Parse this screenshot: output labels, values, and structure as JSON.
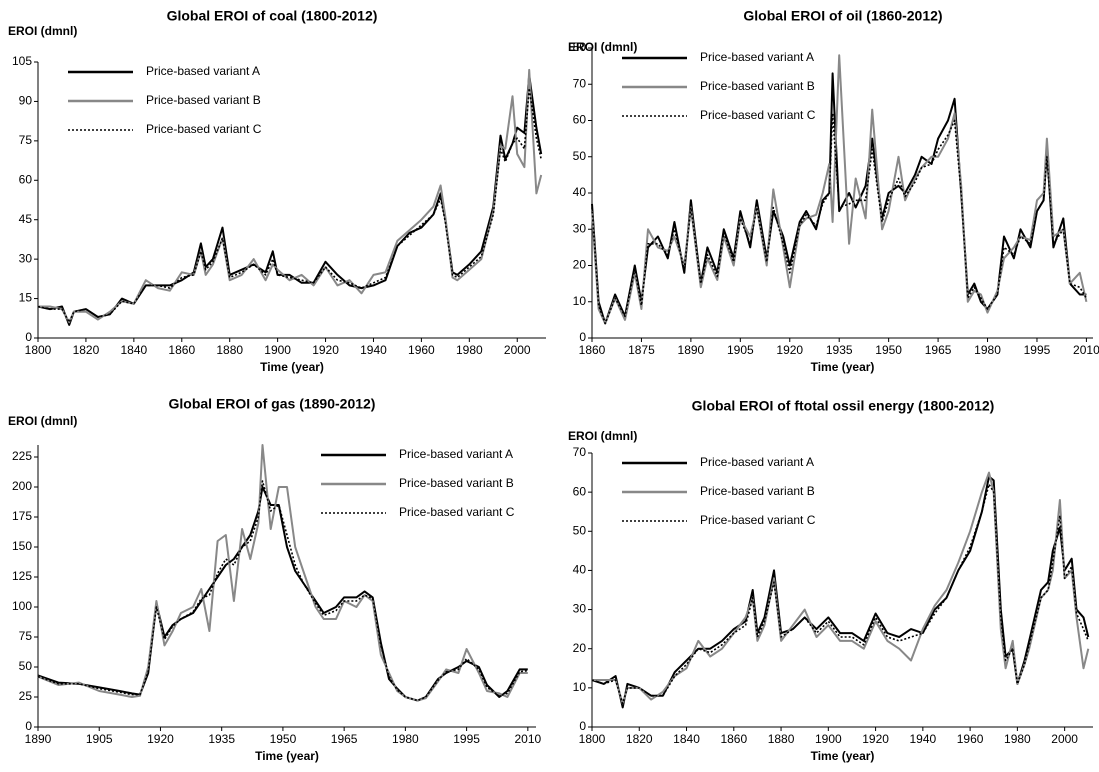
{
  "chart_data": [
    {
      "type": "line",
      "title": "Global EROI of coal (1800-2012)",
      "y_label": "EROI (dmnl)",
      "x_label": "Time (year)",
      "legend": "upper left",
      "x": [
        1800,
        1805,
        1810,
        1813,
        1815,
        1820,
        1825,
        1830,
        1835,
        1840,
        1845,
        1850,
        1855,
        1860,
        1865,
        1868,
        1870,
        1873,
        1877,
        1880,
        1885,
        1890,
        1895,
        1898,
        1900,
        1905,
        1910,
        1915,
        1920,
        1925,
        1930,
        1935,
        1940,
        1945,
        1950,
        1955,
        1960,
        1965,
        1968,
        1970,
        1973,
        1975,
        1980,
        1985,
        1990,
        1993,
        1995,
        1998,
        2000,
        2003,
        2005,
        2008,
        2010
      ],
      "xlim": [
        1800,
        2012
      ],
      "xticks": [
        1800,
        1820,
        1840,
        1860,
        1880,
        1900,
        1920,
        1940,
        1960,
        1980,
        2000
      ],
      "ylim": [
        0,
        105
      ],
      "yticks": [
        0,
        15,
        30,
        45,
        60,
        75,
        90,
        105
      ],
      "series": [
        {
          "name": "Price-based variant A",
          "color": "#000000",
          "values": [
            12,
            11,
            12,
            5,
            10,
            11,
            8,
            9,
            15,
            13,
            20,
            20,
            20,
            22,
            25,
            36,
            27,
            30,
            42,
            24,
            26,
            28,
            25,
            33,
            24,
            24,
            21,
            21,
            29,
            24,
            20,
            19,
            20,
            22,
            35,
            40,
            42,
            47,
            55,
            45,
            25,
            24,
            28,
            33,
            50,
            77,
            68,
            74,
            80,
            78,
            100,
            80,
            70
          ]
        },
        {
          "name": "Price-based variant B",
          "color": "#888888",
          "values": [
            12,
            12,
            11,
            6,
            10,
            10,
            7,
            10,
            14,
            13,
            22,
            19,
            18,
            25,
            24,
            33,
            24,
            28,
            38,
            22,
            24,
            30,
            22,
            28,
            26,
            22,
            24,
            20,
            27,
            20,
            22,
            17,
            24,
            25,
            37,
            41,
            45,
            50,
            58,
            46,
            23,
            22,
            26,
            30,
            48,
            73,
            72,
            92,
            70,
            65,
            102,
            55,
            62
          ]
        },
        {
          "name": "Price-based variant C",
          "color": "#000000",
          "dotted": true,
          "values": [
            12,
            11,
            11,
            6,
            10,
            11,
            8,
            9,
            14,
            13,
            20,
            20,
            19,
            23,
            24,
            33,
            26,
            29,
            38,
            23,
            25,
            28,
            24,
            30,
            24,
            23,
            22,
            21,
            27,
            22,
            21,
            19,
            21,
            23,
            35,
            39,
            43,
            47,
            53,
            44,
            24,
            23,
            27,
            31,
            47,
            72,
            67,
            74,
            76,
            72,
            95,
            76,
            68
          ]
        }
      ]
    },
    {
      "type": "line",
      "title": "Global EROI of oil (1860-2012)",
      "y_label": "EROI (dmnl)",
      "x_label": "Time (year)",
      "legend": "upper left",
      "x": [
        1860,
        1862,
        1864,
        1867,
        1870,
        1873,
        1875,
        1877,
        1880,
        1883,
        1885,
        1888,
        1890,
        1893,
        1895,
        1898,
        1900,
        1903,
        1905,
        1908,
        1910,
        1913,
        1915,
        1918,
        1920,
        1923,
        1925,
        1928,
        1930,
        1932,
        1933,
        1935,
        1938,
        1940,
        1943,
        1945,
        1948,
        1950,
        1953,
        1955,
        1958,
        1960,
        1963,
        1965,
        1968,
        1970,
        1972,
        1974,
        1976,
        1978,
        1980,
        1983,
        1985,
        1988,
        1990,
        1993,
        1995,
        1997,
        1998,
        2000,
        2003,
        2005,
        2008,
        2010
      ],
      "xlim": [
        1860,
        2012
      ],
      "xticks": [
        1860,
        1875,
        1890,
        1905,
        1920,
        1935,
        1950,
        1965,
        1980,
        1995,
        2010
      ],
      "ylim": [
        0,
        80
      ],
      "yticks": [
        0,
        10,
        20,
        30,
        40,
        50,
        60,
        70,
        80
      ],
      "series": [
        {
          "name": "Price-based variant A",
          "color": "#000000",
          "values": [
            37,
            10,
            4,
            12,
            6,
            20,
            10,
            25,
            28,
            22,
            32,
            18,
            38,
            15,
            25,
            18,
            30,
            22,
            35,
            25,
            38,
            22,
            35,
            28,
            20,
            32,
            35,
            30,
            38,
            40,
            73,
            35,
            40,
            36,
            42,
            55,
            33,
            40,
            42,
            40,
            45,
            50,
            48,
            55,
            60,
            66,
            40,
            12,
            15,
            10,
            8,
            12,
            28,
            22,
            30,
            25,
            35,
            38,
            52,
            25,
            33,
            15,
            12,
            12
          ]
        },
        {
          "name": "Price-based variant B",
          "color": "#888888",
          "values": [
            35,
            8,
            4,
            11,
            5,
            18,
            8,
            30,
            25,
            24,
            28,
            20,
            36,
            14,
            22,
            16,
            28,
            20,
            33,
            28,
            36,
            20,
            41,
            25,
            14,
            31,
            33,
            34,
            40,
            48,
            32,
            78,
            26,
            44,
            33,
            63,
            30,
            35,
            50,
            38,
            44,
            47,
            50,
            50,
            55,
            62,
            42,
            10,
            13,
            12,
            7,
            13,
            22,
            25,
            28,
            27,
            38,
            40,
            55,
            28,
            30,
            15,
            18,
            10
          ]
        },
        {
          "name": "Price-based variant C",
          "color": "#000000",
          "dotted": true,
          "values": [
            36,
            9,
            4,
            11,
            6,
            19,
            9,
            26,
            26,
            23,
            30,
            19,
            36,
            15,
            23,
            17,
            29,
            21,
            33,
            26,
            36,
            21,
            36,
            26,
            18,
            31,
            34,
            31,
            37,
            40,
            62,
            36,
            37,
            38,
            38,
            52,
            32,
            38,
            44,
            39,
            43,
            47,
            48,
            52,
            56,
            60,
            40,
            11,
            14,
            11,
            8,
            12,
            25,
            23,
            28,
            26,
            35,
            38,
            50,
            26,
            30,
            15,
            14,
            11
          ]
        }
      ]
    },
    {
      "type": "line",
      "title": "Global EROI of gas (1890-2012)",
      "y_label": "EROI (dmnl)",
      "x_label": "Time (year)",
      "legend": "upper right",
      "x": [
        1890,
        1895,
        1900,
        1905,
        1910,
        1913,
        1915,
        1917,
        1919,
        1921,
        1923,
        1925,
        1928,
        1930,
        1932,
        1934,
        1936,
        1938,
        1940,
        1942,
        1944,
        1945,
        1947,
        1949,
        1951,
        1953,
        1955,
        1958,
        1960,
        1963,
        1965,
        1968,
        1970,
        1972,
        1974,
        1976,
        1978,
        1980,
        1983,
        1985,
        1988,
        1990,
        1993,
        1995,
        1998,
        2000,
        2003,
        2005,
        2008,
        2010
      ],
      "xlim": [
        1890,
        2012
      ],
      "xticks": [
        1890,
        1905,
        1920,
        1935,
        1950,
        1965,
        1980,
        1995,
        2010
      ],
      "ylim": [
        0,
        235
      ],
      "yticks": [
        0,
        25,
        50,
        75,
        100,
        125,
        150,
        175,
        200,
        225
      ],
      "series": [
        {
          "name": "Price-based variant A",
          "color": "#000000",
          "values": [
            43,
            37,
            36,
            33,
            30,
            28,
            27,
            45,
            103,
            75,
            85,
            90,
            95,
            105,
            115,
            125,
            135,
            140,
            150,
            160,
            180,
            200,
            185,
            185,
            150,
            130,
            120,
            105,
            95,
            100,
            108,
            108,
            113,
            108,
            70,
            40,
            32,
            25,
            22,
            25,
            40,
            45,
            50,
            55,
            50,
            35,
            25,
            30,
            48,
            48
          ]
        },
        {
          "name": "Price-based variant B",
          "color": "#888888",
          "values": [
            42,
            35,
            37,
            30,
            27,
            25,
            26,
            50,
            105,
            68,
            80,
            95,
            100,
            115,
            80,
            155,
            160,
            105,
            165,
            140,
            170,
            235,
            165,
            200,
            200,
            150,
            130,
            100,
            90,
            90,
            105,
            100,
            110,
            105,
            60,
            45,
            30,
            25,
            22,
            24,
            38,
            48,
            45,
            65,
            45,
            30,
            28,
            25,
            45,
            45
          ]
        },
        {
          "name": "Price-based variant C",
          "color": "#000000",
          "dotted": true,
          "values": [
            42,
            36,
            36,
            32,
            29,
            27,
            27,
            46,
            100,
            73,
            84,
            90,
            96,
            107,
            110,
            128,
            140,
            135,
            150,
            155,
            175,
            205,
            180,
            185,
            160,
            135,
            120,
            103,
            93,
            97,
            105,
            105,
            110,
            107,
            68,
            42,
            31,
            25,
            22,
            25,
            39,
            46,
            48,
            57,
            48,
            33,
            26,
            28,
            46,
            47
          ]
        }
      ]
    },
    {
      "type": "line",
      "title": "Global EROI of ftotal ossil energy (1800-2012)",
      "y_label": "EROI (dmnl)",
      "x_label": "Time (year)",
      "legend": "upper left",
      "x": [
        1800,
        1805,
        1810,
        1813,
        1815,
        1820,
        1825,
        1830,
        1835,
        1840,
        1845,
        1850,
        1855,
        1860,
        1865,
        1868,
        1870,
        1873,
        1877,
        1880,
        1885,
        1890,
        1895,
        1900,
        1905,
        1910,
        1915,
        1920,
        1925,
        1930,
        1935,
        1940,
        1945,
        1950,
        1955,
        1960,
        1965,
        1968,
        1970,
        1973,
        1975,
        1978,
        1980,
        1983,
        1985,
        1990,
        1993,
        1995,
        1998,
        2000,
        2003,
        2005,
        2008,
        2010
      ],
      "xlim": [
        1800,
        2012
      ],
      "xticks": [
        1800,
        1820,
        1840,
        1860,
        1880,
        1900,
        1920,
        1940,
        1960,
        1980,
        2000
      ],
      "ylim": [
        0,
        70
      ],
      "yticks": [
        0,
        10,
        20,
        30,
        40,
        50,
        60,
        70
      ],
      "series": [
        {
          "name": "Price-based variant A",
          "color": "#000000",
          "values": [
            12,
            11,
            13,
            5,
            11,
            10,
            8,
            8,
            14,
            17,
            20,
            20,
            22,
            25,
            27,
            35,
            24,
            28,
            40,
            24,
            25,
            28,
            25,
            28,
            24,
            24,
            22,
            29,
            24,
            23,
            25,
            24,
            30,
            33,
            40,
            45,
            55,
            64,
            63,
            30,
            18,
            20,
            11,
            17,
            22,
            35,
            37,
            45,
            51,
            40,
            43,
            30,
            28,
            23
          ]
        },
        {
          "name": "Price-based variant B",
          "color": "#888888",
          "values": [
            12,
            12,
            12,
            6,
            10,
            10,
            7,
            9,
            13,
            15,
            22,
            18,
            20,
            24,
            28,
            33,
            22,
            26,
            38,
            22,
            26,
            30,
            23,
            26,
            22,
            22,
            20,
            27,
            22,
            20,
            17,
            25,
            31,
            35,
            42,
            50,
            60,
            65,
            60,
            25,
            15,
            22,
            11,
            16,
            20,
            33,
            35,
            40,
            58,
            38,
            40,
            28,
            15,
            20
          ]
        },
        {
          "name": "Price-based variant C",
          "color": "#000000",
          "dotted": true,
          "values": [
            12,
            11,
            12,
            6,
            10,
            10,
            8,
            8,
            13,
            16,
            20,
            19,
            21,
            24,
            26,
            33,
            23,
            27,
            37,
            23,
            25,
            28,
            24,
            27,
            23,
            23,
            21,
            28,
            23,
            22,
            23,
            24,
            29,
            33,
            40,
            46,
            55,
            62,
            60,
            28,
            17,
            20,
            11,
            16,
            21,
            33,
            35,
            42,
            54,
            38,
            41,
            29,
            25,
            22
          ]
        }
      ]
    }
  ]
}
